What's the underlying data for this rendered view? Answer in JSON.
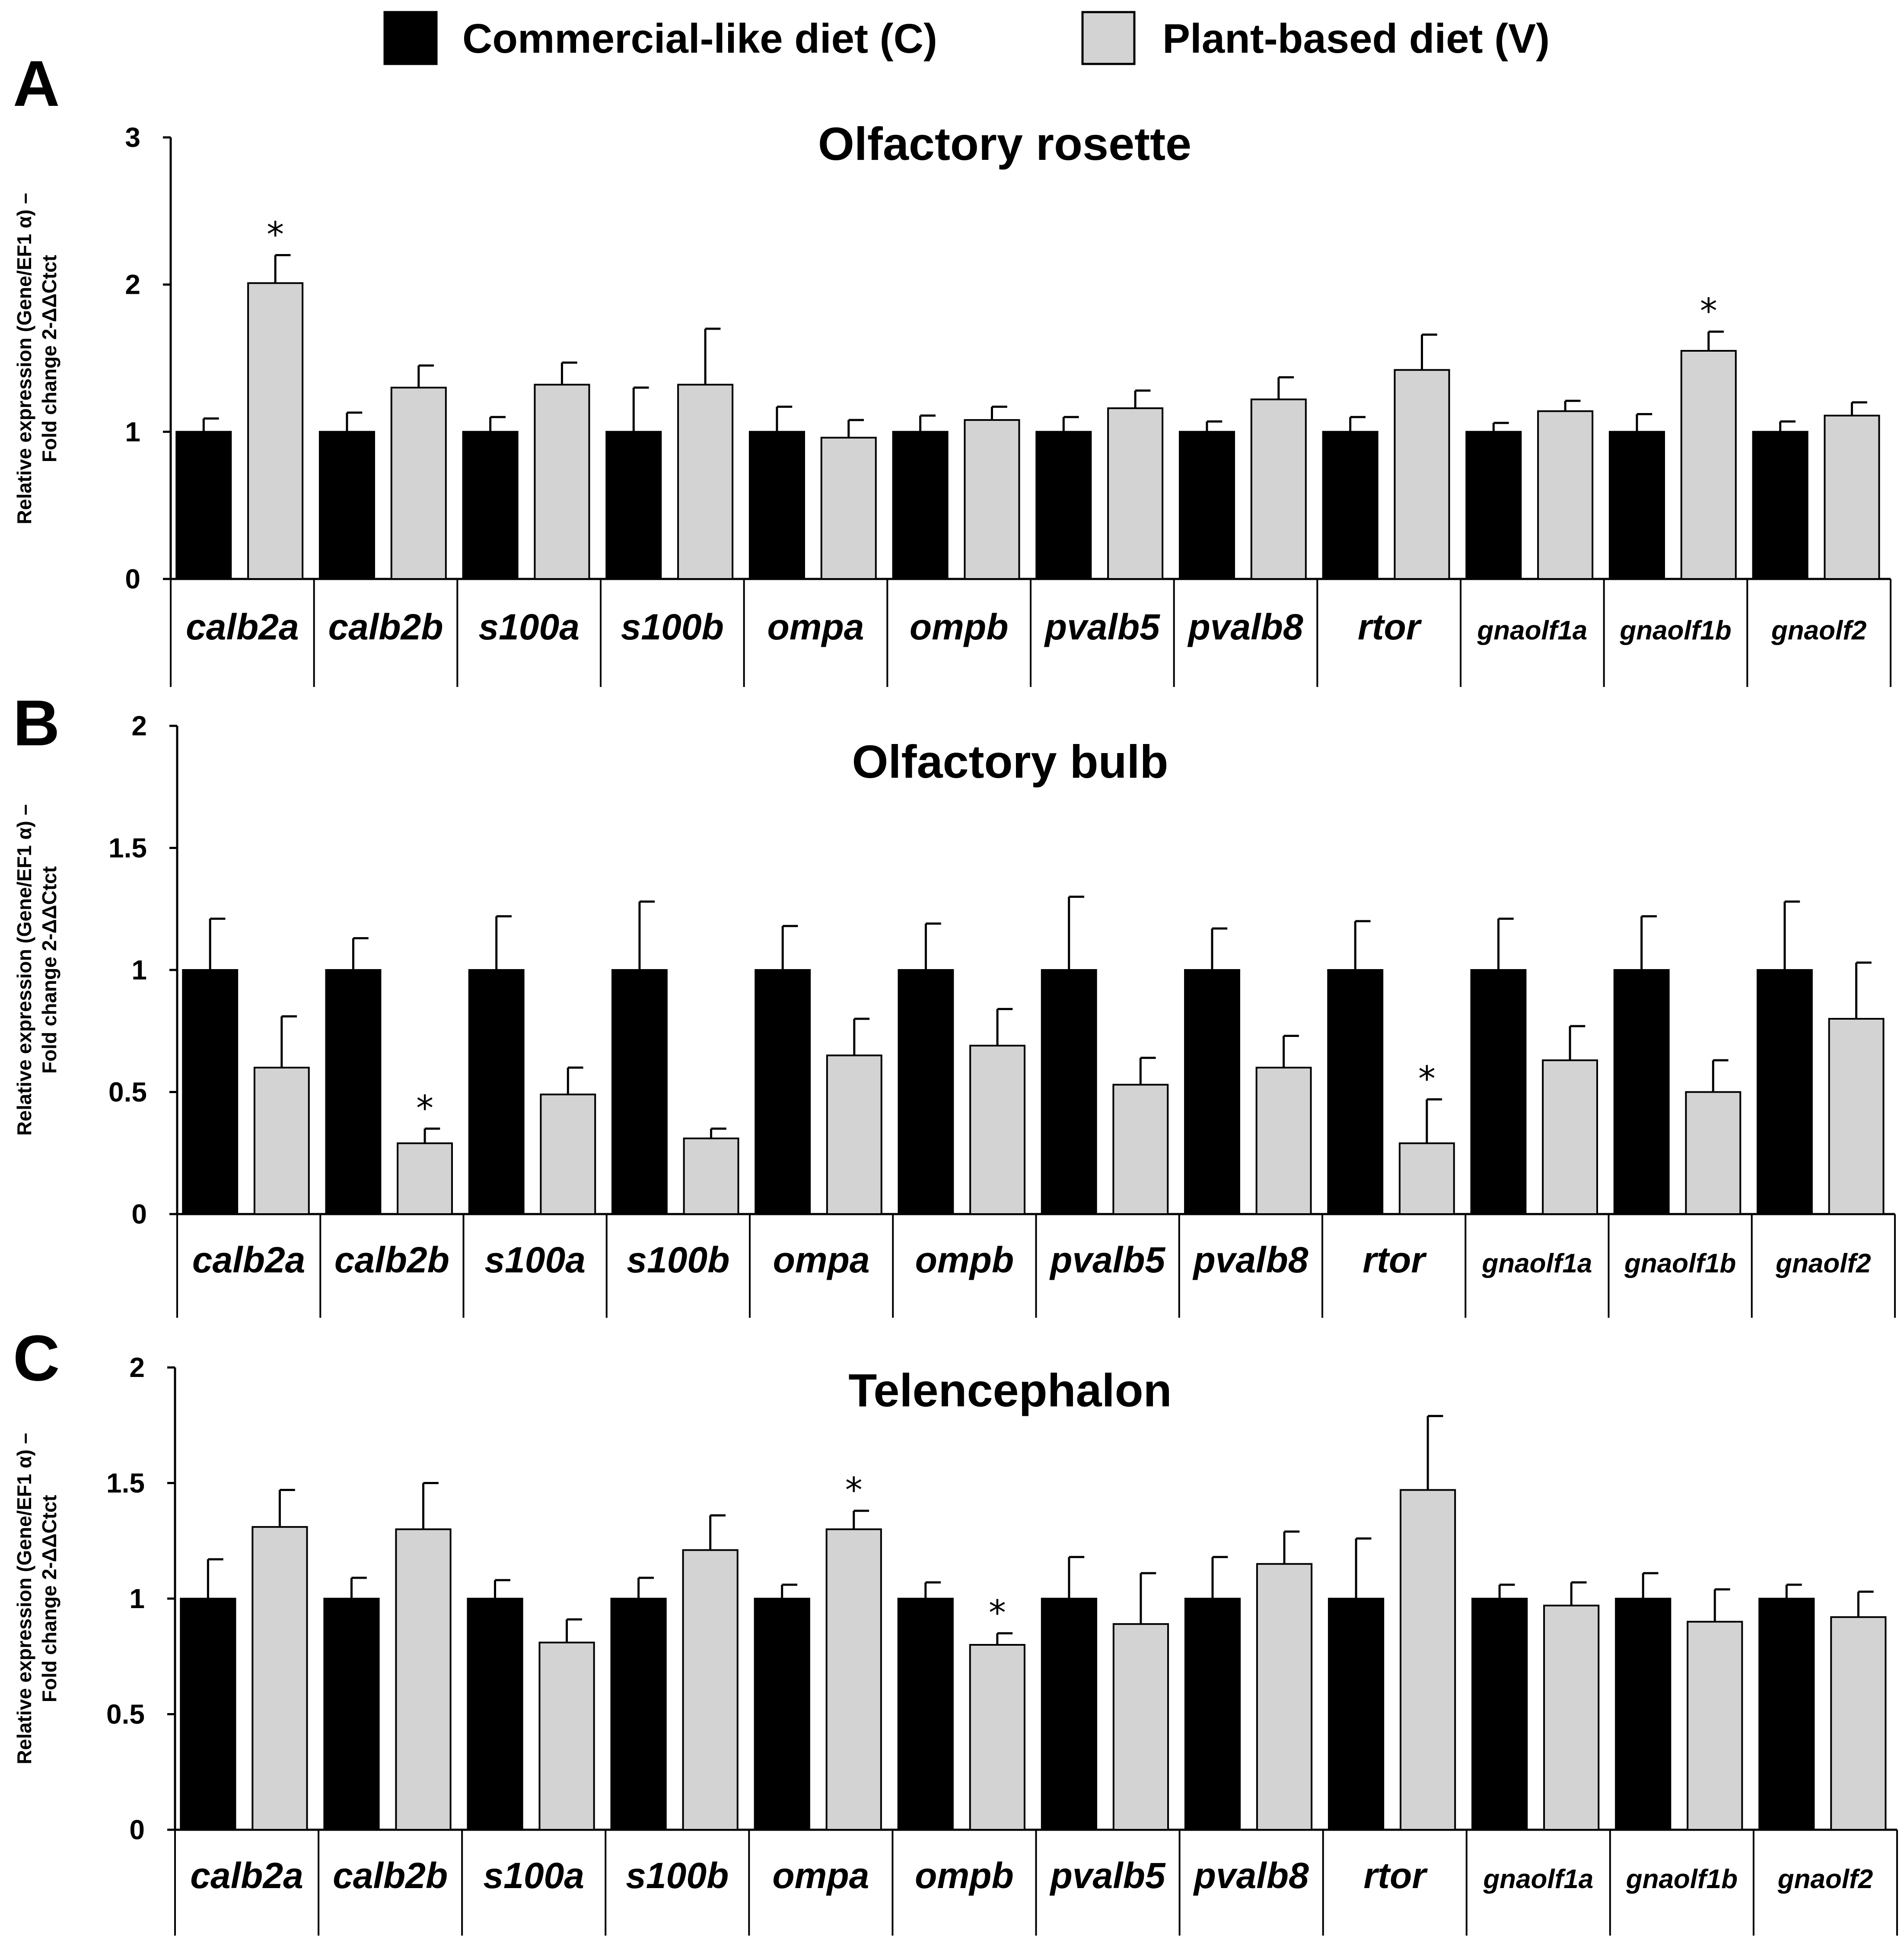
{
  "legend": [
    {
      "label": "Commercial-like diet (C)",
      "color": "#000000"
    },
    {
      "label": "Plant-based diet (V)",
      "color": "#d3d3d3"
    }
  ],
  "chart_data": [
    {
      "type": "bar",
      "panel": "A",
      "title": "Olfactory rosette",
      "ylabel_line1": "Relative expression (Gene/EF1 α) –",
      "ylabel_line2": "Fold change  2-ΔΔCtct",
      "ylim": [
        0,
        3
      ],
      "yticks": [
        "0",
        "1",
        "2",
        "3"
      ],
      "categories": [
        "calb2a",
        "calb2b",
        "s100a",
        "s100b",
        "ompa",
        "ompb",
        "pvalb5",
        "pvalb8",
        "rtor",
        "gnaolf1a",
        "gnaolf1b",
        "gnaolf2"
      ],
      "series": [
        {
          "name": "Commercial-like diet (C)",
          "color": "#000000",
          "values": [
            1,
            1,
            1,
            1,
            1,
            1,
            1,
            1,
            1,
            1,
            1,
            1
          ],
          "errors": [
            0.09,
            0.13,
            0.1,
            0.3,
            0.17,
            0.11,
            0.1,
            0.07,
            0.1,
            0.06,
            0.12,
            0.07
          ]
        },
        {
          "name": "Plant-based diet (V)",
          "color": "#d3d3d3",
          "values": [
            2.01,
            1.3,
            1.32,
            1.32,
            0.96,
            1.08,
            1.16,
            1.22,
            1.42,
            1.14,
            1.55,
            1.11
          ],
          "errors": [
            0.19,
            0.15,
            0.15,
            0.38,
            0.12,
            0.09,
            0.12,
            0.15,
            0.24,
            0.07,
            0.13,
            0.09
          ]
        }
      ],
      "significant_star": [
        true,
        false,
        false,
        false,
        false,
        false,
        false,
        false,
        false,
        false,
        true,
        false
      ]
    },
    {
      "type": "bar",
      "panel": "B",
      "title": "Olfactory bulb",
      "ylabel_line1": "Relative expression (Gene/EF1 α) –",
      "ylabel_line2": "Fold change  2-ΔΔCtct",
      "ylim": [
        0,
        2
      ],
      "yticks": [
        "0",
        "0.5",
        "1",
        "1.5",
        "2"
      ],
      "categories": [
        "calb2a",
        "calb2b",
        "s100a",
        "s100b",
        "ompa",
        "ompb",
        "pvalb5",
        "pvalb8",
        "rtor",
        "gnaolf1a",
        "gnaolf1b",
        "gnaolf2"
      ],
      "series": [
        {
          "name": "Commercial-like diet (C)",
          "color": "#000000",
          "values": [
            1,
            1,
            1,
            1,
            1,
            1,
            1,
            1,
            1,
            1,
            1,
            1
          ],
          "errors": [
            0.21,
            0.13,
            0.22,
            0.28,
            0.18,
            0.19,
            0.3,
            0.17,
            0.2,
            0.21,
            0.22,
            0.28
          ]
        },
        {
          "name": "Plant-based diet (V)",
          "color": "#d3d3d3",
          "values": [
            0.6,
            0.29,
            0.49,
            0.31,
            0.65,
            0.69,
            0.53,
            0.6,
            0.29,
            0.63,
            0.5,
            0.8
          ],
          "errors": [
            0.21,
            0.06,
            0.11,
            0.04,
            0.15,
            0.15,
            0.11,
            0.13,
            0.18,
            0.14,
            0.13,
            0.23
          ]
        }
      ],
      "significant_star": [
        false,
        true,
        false,
        false,
        false,
        false,
        false,
        false,
        true,
        false,
        false,
        false
      ]
    },
    {
      "type": "bar",
      "panel": "C",
      "title": "Telencephalon",
      "ylabel_line1": "Relative expression (Gene/EF1 α) –",
      "ylabel_line2": "Fold change  2-ΔΔCtct",
      "ylim": [
        0,
        2
      ],
      "yticks": [
        "0",
        "0.5",
        "1",
        "1.5",
        "2"
      ],
      "categories": [
        "calb2a",
        "calb2b",
        "s100a",
        "s100b",
        "ompa",
        "ompb",
        "pvalb5",
        "pvalb8",
        "rtor",
        "gnaolf1a",
        "gnaolf1b",
        "gnaolf2"
      ],
      "series": [
        {
          "name": "Commercial-like diet (C)",
          "color": "#000000",
          "values": [
            1,
            1,
            1,
            1,
            1,
            1,
            1,
            1,
            1,
            1,
            1,
            1
          ],
          "errors": [
            0.17,
            0.09,
            0.08,
            0.09,
            0.06,
            0.07,
            0.18,
            0.18,
            0.26,
            0.06,
            0.11,
            0.06
          ]
        },
        {
          "name": "Plant-based diet (V)",
          "color": "#d3d3d3",
          "values": [
            1.31,
            1.3,
            0.81,
            1.21,
            1.3,
            0.8,
            0.89,
            1.15,
            1.47,
            0.97,
            0.9,
            0.92
          ],
          "errors": [
            0.16,
            0.2,
            0.1,
            0.15,
            0.08,
            0.05,
            0.22,
            0.14,
            0.32,
            0.1,
            0.14,
            0.11
          ]
        }
      ],
      "significant_star": [
        false,
        false,
        false,
        false,
        true,
        true,
        false,
        false,
        false,
        false,
        false,
        false
      ]
    }
  ]
}
